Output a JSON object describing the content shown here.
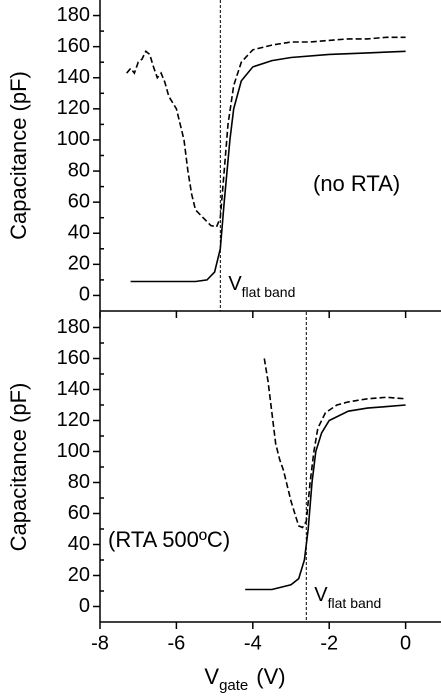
{
  "chart_data": [
    {
      "type": "line",
      "ylabel": "Capacitance (pF)",
      "annotation": "(no RTA)",
      "marker_label": "V",
      "marker_label_sub": "flat band",
      "marker_x": -4.85,
      "xlim": [
        -8,
        0.9
      ],
      "xticks": [
        -8,
        -6,
        -4,
        -2,
        0
      ],
      "ylim": [
        -10,
        190
      ],
      "yticks": [
        0,
        20,
        40,
        60,
        80,
        100,
        120,
        140,
        160,
        180
      ],
      "series": [
        {
          "style": "solid",
          "color": "#000000",
          "x": [
            -7.2,
            -6.5,
            -5.5,
            -5.2,
            -5.0,
            -4.85,
            -4.75,
            -4.6,
            -4.5,
            -4.3,
            -4.0,
            -3.5,
            -3.0,
            -2.0,
            -1.0,
            0
          ],
          "values": [
            9,
            9,
            9,
            10,
            15,
            30,
            60,
            100,
            120,
            138,
            147,
            151,
            153,
            155,
            156,
            157
          ]
        },
        {
          "style": "dashed",
          "color": "#000000",
          "x": [
            -7.3,
            -7.2,
            -7.1,
            -7.0,
            -6.9,
            -6.8,
            -6.7,
            -6.6,
            -6.5,
            -6.4,
            -6.3,
            -6.2,
            -6.0,
            -5.8,
            -5.7,
            -5.6,
            -5.5,
            -5.3,
            -5.1,
            -4.95,
            -4.85,
            -4.75,
            -4.65,
            -4.5,
            -4.3,
            -4.0,
            -3.5,
            -3.0,
            -2.5,
            -2.0,
            -1.5,
            -1.0,
            -0.5,
            0
          ],
          "values": [
            143,
            146,
            143,
            150,
            152,
            157,
            155,
            147,
            140,
            143,
            137,
            128,
            120,
            100,
            80,
            65,
            55,
            50,
            45,
            44,
            50,
            80,
            110,
            135,
            150,
            158,
            161,
            163,
            163,
            164,
            165,
            165,
            166,
            166
          ]
        }
      ]
    },
    {
      "type": "line",
      "ylabel": "Capacitance (pF)",
      "annotation": "(RTA 500ºC)",
      "marker_label": "V",
      "marker_label_sub": "flat band",
      "marker_x": -2.6,
      "xlabel": "V",
      "xlabel_sub": "gate",
      "xlabel_unit": "(V)",
      "xlim": [
        -8,
        0.9
      ],
      "xticks": [
        -8,
        -6,
        -4,
        -2,
        0
      ],
      "ylim": [
        -10,
        190
      ],
      "yticks": [
        0,
        20,
        40,
        60,
        80,
        100,
        120,
        140,
        160,
        180
      ],
      "series": [
        {
          "style": "solid",
          "color": "#000000",
          "x": [
            -4.2,
            -3.5,
            -3.0,
            -2.8,
            -2.65,
            -2.55,
            -2.45,
            -2.35,
            -2.2,
            -2.0,
            -1.5,
            -1.0,
            -0.5,
            0
          ],
          "values": [
            11,
            11,
            14,
            18,
            30,
            50,
            80,
            100,
            112,
            120,
            126,
            128,
            129,
            130
          ]
        },
        {
          "style": "dashed",
          "color": "#000000",
          "x": [
            -3.7,
            -3.6,
            -3.5,
            -3.4,
            -3.3,
            -3.2,
            -3.0,
            -2.9,
            -2.8,
            -2.7,
            -2.6,
            -2.5,
            -2.4,
            -2.3,
            -2.1,
            -1.8,
            -1.5,
            -1.0,
            -0.5,
            0
          ],
          "values": [
            160,
            145,
            125,
            105,
            95,
            88,
            68,
            60,
            52,
            51,
            55,
            80,
            100,
            115,
            125,
            130,
            132,
            134,
            135,
            134
          ]
        }
      ]
    }
  ]
}
